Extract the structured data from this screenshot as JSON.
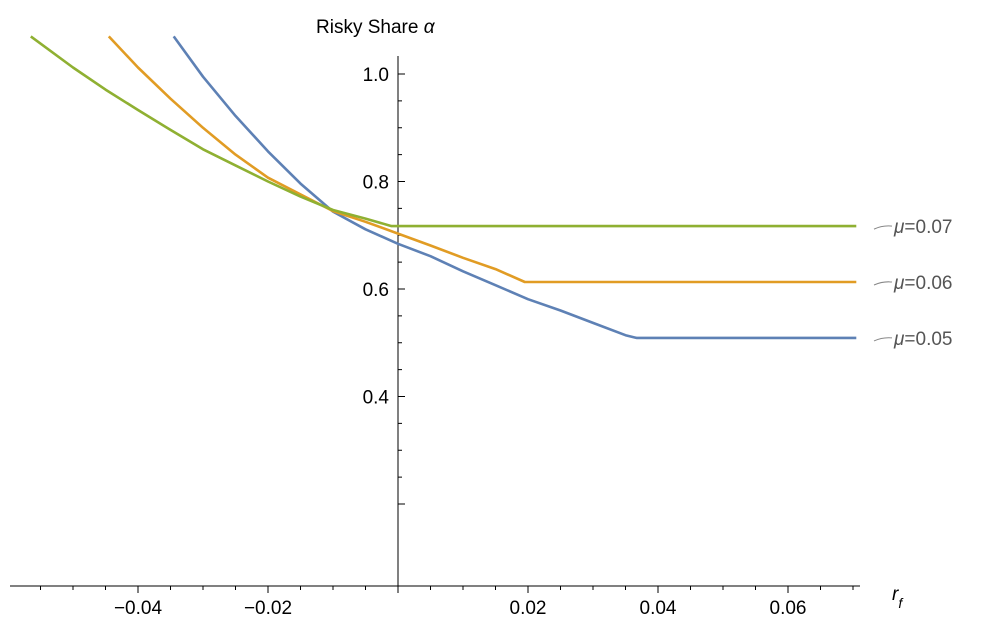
{
  "chart_data": {
    "type": "line",
    "title": "",
    "ylabel": "Risky Share α",
    "xlabel": "r_f",
    "xlim": [
      -0.0585,
      0.0705
    ],
    "ylim": [
      0.2,
      1.15
    ],
    "x_ticks": [
      -0.04,
      -0.02,
      0.02,
      0.04,
      0.06
    ],
    "x_tick_labels": [
      "−0.04",
      "−0.02",
      "0.02",
      "0.04",
      "0.06"
    ],
    "y_ticks": [
      0.4,
      0.6,
      0.8,
      1.0
    ],
    "y_tick_labels": [
      "0.4",
      "0.6",
      "0.8",
      "1.0"
    ],
    "grid": false,
    "series": [
      {
        "name": "μ=0.05",
        "color": "#5e81b5",
        "points": [
          [
            -0.0345,
            1.07
          ],
          [
            -0.03,
            0.995
          ],
          [
            -0.025,
            0.922
          ],
          [
            -0.02,
            0.856
          ],
          [
            -0.015,
            0.796
          ],
          [
            -0.01,
            0.744
          ],
          [
            -0.005,
            0.711
          ],
          [
            0.0,
            0.684
          ],
          [
            0.005,
            0.661
          ],
          [
            0.01,
            0.633
          ],
          [
            0.015,
            0.607
          ],
          [
            0.02,
            0.581
          ],
          [
            0.025,
            0.56
          ],
          [
            0.03,
            0.537
          ],
          [
            0.035,
            0.514
          ],
          [
            0.0367,
            0.509
          ],
          [
            0.0705,
            0.509
          ]
        ]
      },
      {
        "name": "μ=0.06",
        "color": "#e19c24",
        "points": [
          [
            -0.0445,
            1.07
          ],
          [
            -0.04,
            1.012
          ],
          [
            -0.035,
            0.954
          ],
          [
            -0.03,
            0.9
          ],
          [
            -0.025,
            0.85
          ],
          [
            -0.02,
            0.807
          ],
          [
            -0.015,
            0.776
          ],
          [
            -0.01,
            0.745
          ],
          [
            -0.005,
            0.725
          ],
          [
            0.0,
            0.703
          ],
          [
            0.005,
            0.681
          ],
          [
            0.01,
            0.658
          ],
          [
            0.015,
            0.637
          ],
          [
            0.0195,
            0.613
          ],
          [
            0.0705,
            0.613
          ]
        ]
      },
      {
        "name": "μ=0.07",
        "color": "#8fb032",
        "points": [
          [
            -0.0565,
            1.07
          ],
          [
            -0.05,
            1.012
          ],
          [
            -0.045,
            0.971
          ],
          [
            -0.04,
            0.933
          ],
          [
            -0.035,
            0.896
          ],
          [
            -0.03,
            0.86
          ],
          [
            -0.025,
            0.83
          ],
          [
            -0.02,
            0.8
          ],
          [
            -0.015,
            0.772
          ],
          [
            -0.01,
            0.747
          ],
          [
            -0.005,
            0.731
          ],
          [
            -0.001,
            0.717
          ],
          [
            0.0705,
            0.717
          ]
        ]
      }
    ]
  }
}
